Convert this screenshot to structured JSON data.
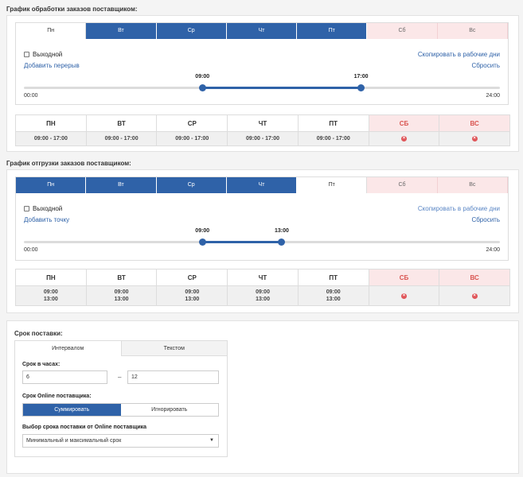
{
  "orders": {
    "title": "График обработки заказов поставщиком:",
    "tabs": [
      {
        "label": "Пн",
        "state": "active"
      },
      {
        "label": "Вт",
        "state": "blue"
      },
      {
        "label": "Ср",
        "state": "blue"
      },
      {
        "label": "Чт",
        "state": "blue"
      },
      {
        "label": "Пт",
        "state": "blue"
      },
      {
        "label": "Сб",
        "state": "weekend"
      },
      {
        "label": "Вс",
        "state": "weekend"
      }
    ],
    "dayoff_label": "Выходной",
    "copy_label": "Скопировать в рабочие дни",
    "add_label": "Добавить перерыв",
    "reset_label": "Сбросить",
    "range_start": "00:00",
    "range_end": "24:00",
    "handle_from": "09:00",
    "handle_to": "17:00",
    "handle_from_hours": 9,
    "handle_to_hours": 17,
    "summary": [
      {
        "day": "ПН",
        "lines": [
          "09:00 - 17:00"
        ],
        "off": false
      },
      {
        "day": "ВТ",
        "lines": [
          "09:00 - 17:00"
        ],
        "off": false
      },
      {
        "day": "СР",
        "lines": [
          "09:00 - 17:00"
        ],
        "off": false
      },
      {
        "day": "ЧТ",
        "lines": [
          "09:00 - 17:00"
        ],
        "off": false
      },
      {
        "day": "ПТ",
        "lines": [
          "09:00 - 17:00"
        ],
        "off": false
      },
      {
        "day": "СБ",
        "lines": [],
        "off": true
      },
      {
        "day": "ВС",
        "lines": [],
        "off": true
      }
    ]
  },
  "shipments": {
    "title": "График отгрузки заказов поставщиком:",
    "tabs": [
      {
        "label": "Пн",
        "state": "blue"
      },
      {
        "label": "Вт",
        "state": "blue"
      },
      {
        "label": "Ср",
        "state": "blue"
      },
      {
        "label": "Чт",
        "state": "blue"
      },
      {
        "label": "Пт",
        "state": "active"
      },
      {
        "label": "Сб",
        "state": "weekend"
      },
      {
        "label": "Вс",
        "state": "weekend"
      }
    ],
    "dayoff_label": "Выходной",
    "copy_label": "Скопировать в рабочие дни",
    "add_label": "Добавить точку",
    "reset_label": "Сбросить",
    "range_start": "00:00",
    "range_end": "24:00",
    "handle_from": "09:00",
    "handle_to": "13:00",
    "handle_from_hours": 9,
    "handle_to_hours": 13,
    "summary": [
      {
        "day": "ПН",
        "lines": [
          "09:00",
          "13:00"
        ],
        "off": false
      },
      {
        "day": "ВТ",
        "lines": [
          "09:00",
          "13:00"
        ],
        "off": false
      },
      {
        "day": "СР",
        "lines": [
          "09:00",
          "13:00"
        ],
        "off": false
      },
      {
        "day": "ЧТ",
        "lines": [
          "09:00",
          "13:00"
        ],
        "off": false
      },
      {
        "day": "ПТ",
        "lines": [
          "09:00",
          "13:00"
        ],
        "off": false
      },
      {
        "day": "СБ",
        "lines": [],
        "off": true
      },
      {
        "day": "ВС",
        "lines": [],
        "off": true
      }
    ]
  },
  "delivery": {
    "title": "Срок поставки:",
    "tab_interval": "Интервалом",
    "tab_text": "Текстом",
    "hours_label": "Срок в часах:",
    "from_value": "6",
    "to_value": "12",
    "dash": "–",
    "online_label": "Срок Online поставщика:",
    "btn_sum": "Суммировать",
    "btn_ignore": "Игнорировать",
    "select_label": "Выбор срока поставки от Online поставщика",
    "select_value": "Минимальный и максимальный срок"
  },
  "colors": {
    "accent": "#2f62a8",
    "weekend_bg": "#fbe7e8",
    "weekend_text": "#d9534f"
  },
  "icons": {
    "dayoff_check": "checkbox-icon",
    "remove": "x-circle-icon",
    "caret": "caret-down-icon"
  }
}
